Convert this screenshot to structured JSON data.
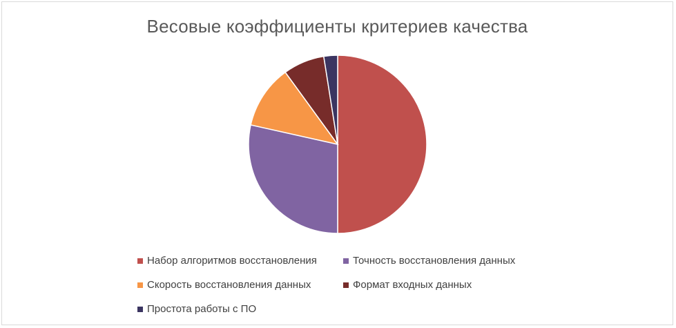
{
  "chart_data": {
    "type": "pie",
    "title": "Весовые коэффициенты критериев качества",
    "legend_position": "bottom",
    "slices": [
      {
        "label": "Набор алгоритмов восстановления",
        "value": 50,
        "color": "#c0504d"
      },
      {
        "label": "Точность восстановления данных",
        "value": 28.5,
        "color": "#8064a2"
      },
      {
        "label": "Скорость восстановления данных",
        "value": 11.5,
        "color": "#f79646"
      },
      {
        "label": "Формат входных данных",
        "value": 7.5,
        "color": "#772c2a"
      },
      {
        "label": "Простота работы с ПО",
        "value": 2.5,
        "color": "#3b3561"
      }
    ]
  }
}
